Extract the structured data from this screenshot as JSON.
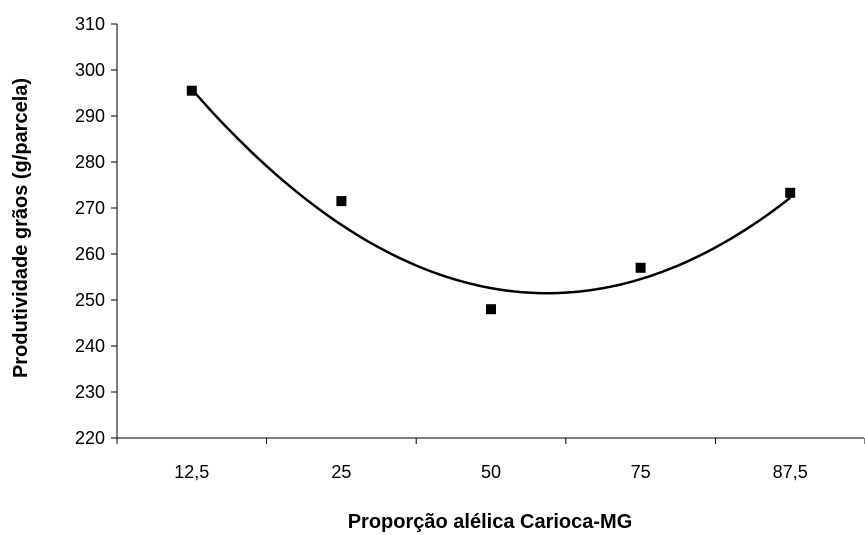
{
  "chart_data": {
    "type": "scatter",
    "title": "",
    "xlabel": "Proporção alélica Carioca-MG",
    "ylabel": "Produtividade grãos (g/parcela)",
    "categories": [
      "12,5",
      "25",
      "50",
      "75",
      "87,5"
    ],
    "ylim": [
      220,
      310
    ],
    "yticks": [
      220,
      230,
      240,
      250,
      260,
      270,
      280,
      290,
      300,
      310
    ],
    "grid": false,
    "legend": "none",
    "series": [
      {
        "values": [
          295.5,
          271.5,
          248,
          257,
          273.3
        ],
        "marker": "square",
        "color": "#000000"
      }
    ],
    "trendline": {
      "type": "polynomial-2",
      "values": [
        295.5,
        267,
        252.5,
        254,
        272.5
      ],
      "vertex_value": 251.5,
      "color": "#000000"
    }
  }
}
